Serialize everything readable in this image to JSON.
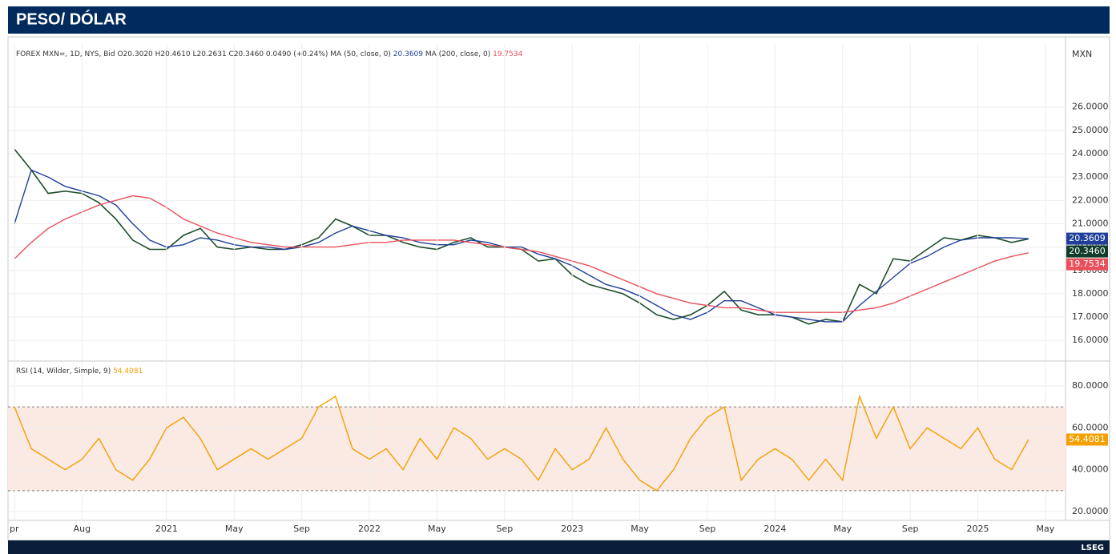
{
  "header_title": "PESO/ DÓLAR",
  "brand": "LSEG",
  "chart_data": [
    {
      "type": "line",
      "y_label": "MXN",
      "x": [
        "2020-04",
        "2020-05",
        "2020-06",
        "2020-07",
        "2020-08",
        "2020-09",
        "2020-10",
        "2020-11",
        "2020-12",
        "2021-01",
        "2021-02",
        "2021-03",
        "2021-04",
        "2021-05",
        "2021-06",
        "2021-07",
        "2021-08",
        "2021-09",
        "2021-10",
        "2021-11",
        "2021-12",
        "2022-01",
        "2022-02",
        "2022-03",
        "2022-04",
        "2022-05",
        "2022-06",
        "2022-07",
        "2022-08",
        "2022-09",
        "2022-10",
        "2022-11",
        "2022-12",
        "2023-01",
        "2023-02",
        "2023-03",
        "2023-04",
        "2023-05",
        "2023-06",
        "2023-07",
        "2023-08",
        "2023-09",
        "2023-10",
        "2023-11",
        "2023-12",
        "2024-01",
        "2024-02",
        "2024-03",
        "2024-04",
        "2024-05",
        "2024-06",
        "2024-07",
        "2024-08",
        "2024-09",
        "2024-10",
        "2024-11",
        "2024-12",
        "2025-01",
        "2025-02",
        "2025-03",
        "2025-04"
      ],
      "xlim": [
        "2020-04",
        "2025-06"
      ],
      "ylim": [
        15.15,
        28.7
      ],
      "yticks": [
        {
          "value": 16,
          "label": "16.0000"
        },
        {
          "value": 17,
          "label": "17.0000"
        },
        {
          "value": 18,
          "label": "18.0000"
        },
        {
          "value": 19,
          "label": "19.0000"
        },
        {
          "value": 20,
          "label": "20.0000"
        },
        {
          "value": 21,
          "label": "21.0000"
        },
        {
          "value": 22,
          "label": "22.0000"
        },
        {
          "value": 23,
          "label": "23.0000"
        },
        {
          "value": 24,
          "label": "24.0000"
        },
        {
          "value": 25,
          "label": "25.0000"
        },
        {
          "value": 26,
          "label": "26.0000"
        }
      ],
      "grid": true,
      "series": [
        {
          "name": "FOREX MXN=, 1D, NYS, Bid O20.3020 H20.4610 L20.2631 C20.3460 0.0490 (+0.24%)",
          "color": "#1e4d2b",
          "last_label": "20.3460",
          "badge_color": "#0f3d2a",
          "values": [
            24.2,
            23.3,
            22.3,
            22.4,
            22.3,
            21.9,
            21.2,
            20.3,
            19.9,
            19.9,
            20.5,
            20.8,
            20.0,
            19.9,
            20.0,
            19.9,
            19.9,
            20.1,
            20.4,
            21.2,
            20.9,
            20.5,
            20.5,
            20.2,
            20.0,
            19.9,
            20.2,
            20.4,
            20.0,
            20.0,
            19.9,
            19.4,
            19.5,
            18.8,
            18.4,
            18.2,
            18.0,
            17.6,
            17.1,
            16.9,
            17.1,
            17.5,
            18.1,
            17.3,
            17.1,
            17.1,
            17.0,
            16.7,
            16.9,
            16.8,
            18.4,
            18.0,
            19.5,
            19.4,
            19.9,
            20.4,
            20.3,
            20.5,
            20.4,
            20.2,
            20.346
          ]
        },
        {
          "name": "MA (50, close, 0)",
          "color": "#1f3f99",
          "last_label": "20.3609",
          "badge_color": "#1f3f99",
          "values": [
            21.0,
            23.3,
            23.0,
            22.6,
            22.4,
            22.2,
            21.8,
            21.0,
            20.3,
            20.0,
            20.1,
            20.4,
            20.3,
            20.1,
            20.0,
            20.0,
            19.9,
            20.0,
            20.2,
            20.6,
            20.9,
            20.7,
            20.5,
            20.4,
            20.2,
            20.1,
            20.1,
            20.3,
            20.2,
            20.0,
            20.0,
            19.7,
            19.5,
            19.2,
            18.8,
            18.4,
            18.2,
            17.9,
            17.5,
            17.1,
            16.9,
            17.2,
            17.7,
            17.7,
            17.4,
            17.1,
            17.0,
            16.9,
            16.8,
            16.8,
            17.5,
            18.1,
            18.7,
            19.3,
            19.6,
            20.0,
            20.3,
            20.4,
            20.4,
            20.4,
            20.3609
          ]
        },
        {
          "name": "MA (200, close, 0)",
          "color": "#e8505b",
          "last_label": "19.7534",
          "badge_color": "#e8505b",
          "values": [
            19.5,
            20.2,
            20.8,
            21.2,
            21.5,
            21.8,
            22.0,
            22.2,
            22.1,
            21.7,
            21.2,
            20.9,
            20.6,
            20.4,
            20.2,
            20.1,
            20.0,
            20.0,
            20.0,
            20.0,
            20.1,
            20.2,
            20.2,
            20.3,
            20.3,
            20.3,
            20.3,
            20.2,
            20.1,
            20.0,
            19.9,
            19.8,
            19.6,
            19.4,
            19.2,
            18.9,
            18.6,
            18.3,
            18.0,
            17.8,
            17.6,
            17.5,
            17.4,
            17.4,
            17.3,
            17.2,
            17.2,
            17.2,
            17.2,
            17.2,
            17.3,
            17.4,
            17.6,
            17.9,
            18.2,
            18.5,
            18.8,
            19.1,
            19.4,
            19.6,
            19.7534
          ]
        }
      ]
    },
    {
      "type": "line",
      "x": [
        "2020-04",
        "2020-05",
        "2020-06",
        "2020-07",
        "2020-08",
        "2020-09",
        "2020-10",
        "2020-11",
        "2020-12",
        "2021-01",
        "2021-02",
        "2021-03",
        "2021-04",
        "2021-05",
        "2021-06",
        "2021-07",
        "2021-08",
        "2021-09",
        "2021-10",
        "2021-11",
        "2021-12",
        "2022-01",
        "2022-02",
        "2022-03",
        "2022-04",
        "2022-05",
        "2022-06",
        "2022-07",
        "2022-08",
        "2022-09",
        "2022-10",
        "2022-11",
        "2022-12",
        "2023-01",
        "2023-02",
        "2023-03",
        "2023-04",
        "2023-05",
        "2023-06",
        "2023-07",
        "2023-08",
        "2023-09",
        "2023-10",
        "2023-11",
        "2023-12",
        "2024-01",
        "2024-02",
        "2024-03",
        "2024-04",
        "2024-05",
        "2024-06",
        "2024-07",
        "2024-08",
        "2024-09",
        "2024-10",
        "2024-11",
        "2024-12",
        "2025-01",
        "2025-02",
        "2025-03",
        "2025-04"
      ],
      "xlim": [
        "2020-04",
        "2025-06"
      ],
      "xticks": [
        {
          "value": "2020-04",
          "label": "pr"
        },
        {
          "value": "2020-08",
          "label": "Aug"
        },
        {
          "value": "2021-01",
          "label": "2021"
        },
        {
          "value": "2021-05",
          "label": "May"
        },
        {
          "value": "2021-09",
          "label": "Sep"
        },
        {
          "value": "2022-01",
          "label": "2022"
        },
        {
          "value": "2022-05",
          "label": "May"
        },
        {
          "value": "2022-09",
          "label": "Sep"
        },
        {
          "value": "2023-01",
          "label": "2023"
        },
        {
          "value": "2023-05",
          "label": "May"
        },
        {
          "value": "2023-09",
          "label": "Sep"
        },
        {
          "value": "2024-01",
          "label": "2024"
        },
        {
          "value": "2024-05",
          "label": "May"
        },
        {
          "value": "2024-09",
          "label": "Sep"
        },
        {
          "value": "2025-01",
          "label": "2025"
        },
        {
          "value": "2025-05",
          "label": "May"
        }
      ],
      "ylim": [
        15.8,
        91.5
      ],
      "yticks": [
        {
          "value": 20,
          "label": "20.0000"
        },
        {
          "value": 40,
          "label": "40.0000"
        },
        {
          "value": 60,
          "label": "60.0000"
        },
        {
          "value": 80,
          "label": "80.0000"
        }
      ],
      "band": [
        30,
        70
      ],
      "band_color": "#fbe9e4",
      "grid": true,
      "series": [
        {
          "name": "RSI (14, Wilder, Simple, 9)",
          "color": "#f5a000",
          "last_label": "54.4081",
          "badge_color": "#f5a000",
          "values": [
            70,
            50,
            45,
            40,
            45,
            55,
            40,
            35,
            45,
            60,
            65,
            55,
            40,
            45,
            50,
            45,
            50,
            55,
            70,
            75,
            50,
            45,
            50,
            40,
            55,
            45,
            60,
            55,
            45,
            50,
            45,
            35,
            50,
            40,
            45,
            60,
            45,
            35,
            30,
            40,
            55,
            65,
            70,
            35,
            45,
            50,
            45,
            35,
            45,
            35,
            75,
            55,
            70,
            50,
            60,
            55,
            50,
            60,
            45,
            40,
            54.4081
          ]
        }
      ]
    }
  ]
}
